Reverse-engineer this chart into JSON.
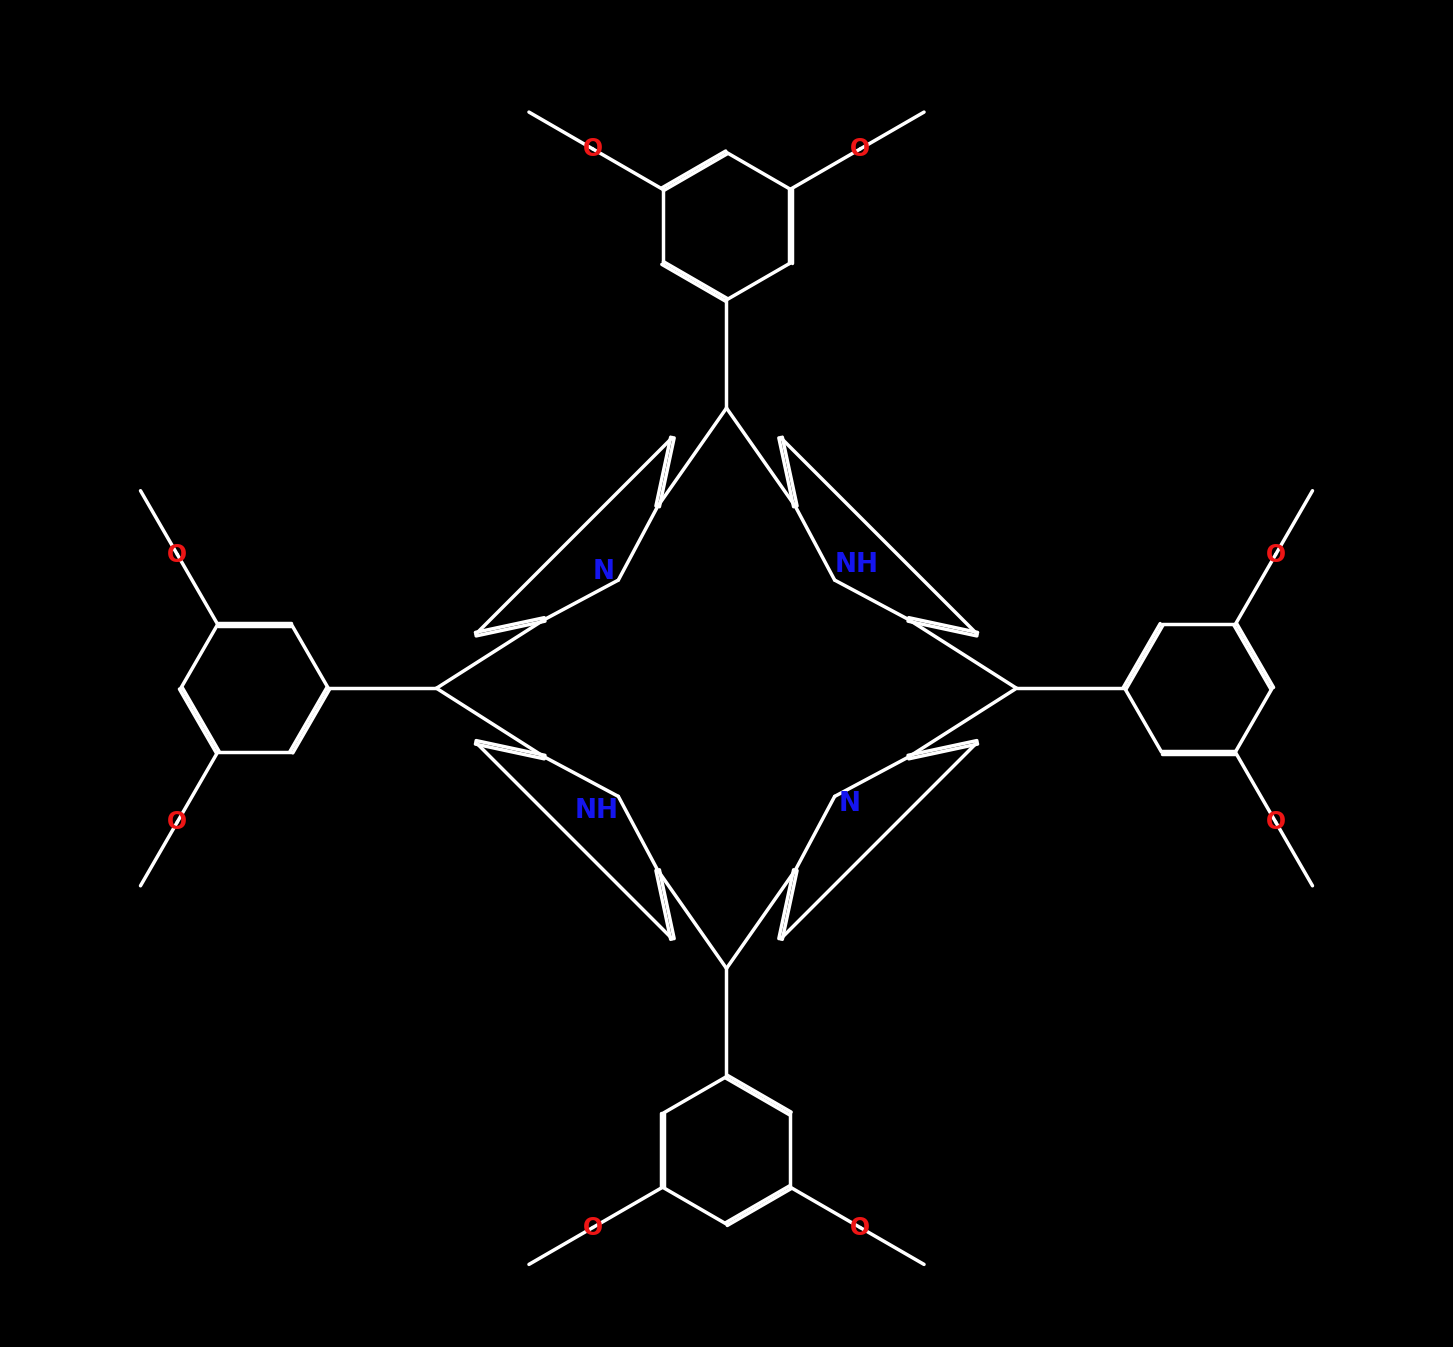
{
  "bg_color": "#000000",
  "bond_color": "#ffffff",
  "N_color": "#1515ee",
  "O_color": "#ee1515",
  "bond_width": 2.5,
  "dbo": 0.018,
  "figsize": [
    14.53,
    13.47
  ],
  "dpi": 100,
  "xlim": [
    -7.2,
    7.2
  ],
  "ylim": [
    -6.7,
    7.0
  ],
  "fontsize_N": 19,
  "fontsize_O": 17
}
